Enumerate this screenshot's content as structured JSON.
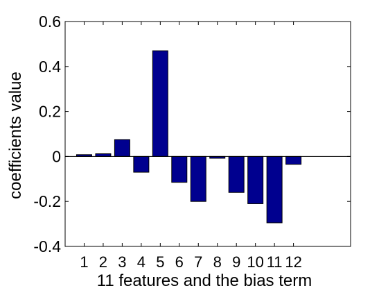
{
  "chart_data": {
    "type": "bar",
    "title": "",
    "xlabel": "11 features and the bias term",
    "ylabel": "coefficients value",
    "categories": [
      "1",
      "2",
      "3",
      "4",
      "5",
      "6",
      "7",
      "8",
      "9",
      "10",
      "11",
      "12"
    ],
    "values": [
      0.008,
      0.012,
      0.075,
      -0.07,
      0.47,
      -0.115,
      -0.2,
      -0.008,
      -0.16,
      -0.21,
      -0.295,
      -0.035
    ],
    "xlim": [
      0,
      15
    ],
    "ylim": [
      -0.4,
      0.6
    ],
    "yticks": [
      "-0.4",
      "-0.2",
      "0",
      "0.2",
      "0.4",
      "0.6"
    ],
    "bar_color": "#00008f",
    "grid": false,
    "box": true,
    "zero_line": true
  }
}
